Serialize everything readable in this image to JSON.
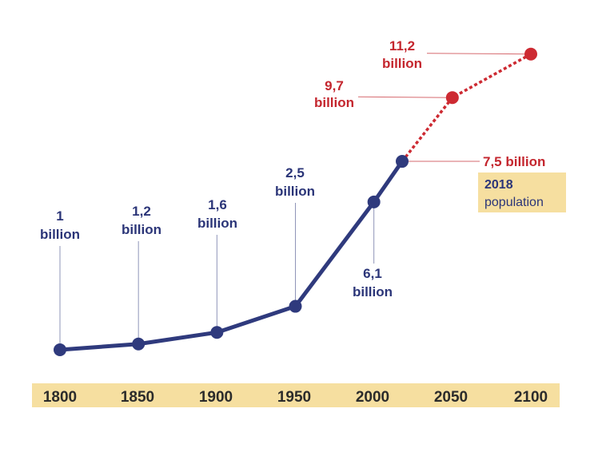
{
  "chart_data": {
    "type": "line",
    "colors": {
      "historical": "#2f3a7d",
      "projection": "#cd2a32",
      "axis_band": "#f6dfa0",
      "leader_hist": "#8f95b8",
      "leader_proj": "#d66a6f"
    },
    "x_ticks": [
      "1800",
      "1850",
      "1900",
      "1950",
      "2000",
      "2050",
      "2100"
    ],
    "series": [
      {
        "style": "solid",
        "points": [
          {
            "x": 1800,
            "y": 1.0,
            "label": [
              "1",
              "billion"
            ]
          },
          {
            "x": 1850,
            "y": 1.2,
            "label": [
              "1,2",
              "billion"
            ]
          },
          {
            "x": 1900,
            "y": 1.6,
            "label": [
              "1,6",
              "billion"
            ]
          },
          {
            "x": 1950,
            "y": 2.5,
            "label": [
              "2,5",
              "billion"
            ]
          },
          {
            "x": 2000,
            "y": 6.1,
            "label": [
              "6,1",
              "billion"
            ]
          },
          {
            "x": 2018,
            "y": 7.5,
            "label": [
              "7,5 billion"
            ]
          }
        ]
      },
      {
        "style": "dashed",
        "points": [
          {
            "x": 2018,
            "y": 7.5
          },
          {
            "x": 2050,
            "y": 9.7,
            "label": [
              "9,7",
              "billion"
            ]
          },
          {
            "x": 2100,
            "y": 11.2,
            "label": [
              "11,2",
              "billion"
            ]
          }
        ]
      }
    ],
    "annotation": {
      "year": "2018",
      "text": "population"
    }
  }
}
